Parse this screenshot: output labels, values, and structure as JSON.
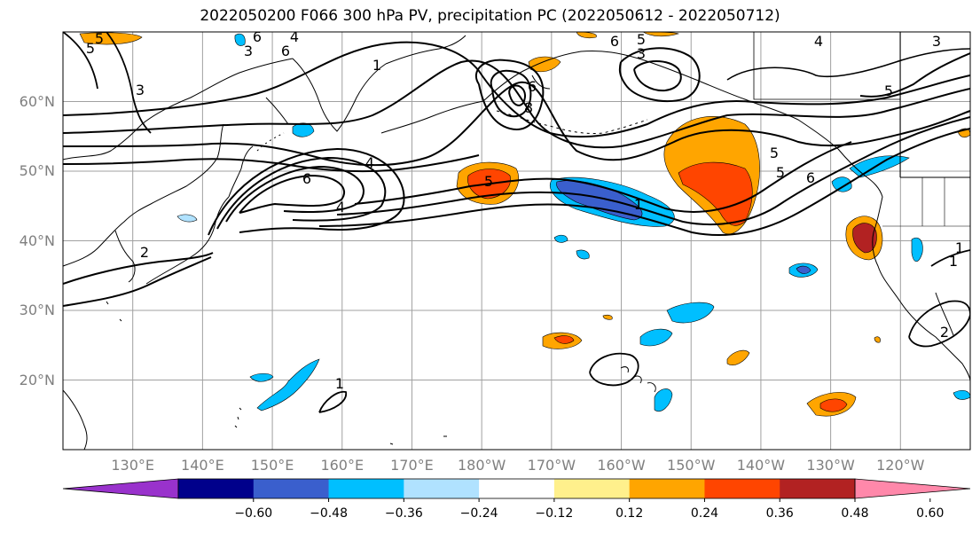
{
  "title": "2022050200 F066 300 hPa PV, precipitation PC (2022050612 - 2022050712)",
  "lat_labels": [
    {
      "text": "60°N",
      "lat": 60
    },
    {
      "text": "50°N",
      "lat": 50
    },
    {
      "text": "40°N",
      "lat": 40
    },
    {
      "text": "30°N",
      "lat": 30
    },
    {
      "text": "20°N",
      "lat": 20
    }
  ],
  "lon_labels": [
    {
      "text": "130°E",
      "lon": 130
    },
    {
      "text": "140°E",
      "lon": 140
    },
    {
      "text": "150°E",
      "lon": 150
    },
    {
      "text": "160°E",
      "lon": 160
    },
    {
      "text": "170°E",
      "lon": 170
    },
    {
      "text": "180°W",
      "lon": 180
    },
    {
      "text": "170°W",
      "lon": 190
    },
    {
      "text": "160°W",
      "lon": 200
    },
    {
      "text": "150°W",
      "lon": 210
    },
    {
      "text": "140°W",
      "lon": 220
    },
    {
      "text": "130°W",
      "lon": 230
    },
    {
      "text": "120°W",
      "lon": 240
    }
  ],
  "colorbar": {
    "colors": [
      "#9932cc",
      "#00008b",
      "#3a5fcd",
      "#00bfff",
      "#b0e2ff",
      "#ffffff",
      "#fff08c",
      "#ffa500",
      "#ff4500",
      "#b22222",
      "#ff88aa"
    ],
    "labels": [
      "−0.60",
      "−0.48",
      "−0.36",
      "−0.24",
      "−0.12",
      "0.12",
      "0.24",
      "0.36",
      "0.48",
      "0.60"
    ]
  },
  "contour_labels": [
    "5",
    "6",
    "4",
    "3",
    "6",
    "5",
    "3",
    "1",
    "8",
    "6",
    "5",
    "3",
    "4",
    "3",
    "4",
    "6",
    "5",
    "4",
    "5",
    "5",
    "6",
    "5",
    "2",
    "1",
    "1",
    "1",
    "1",
    "6",
    "2"
  ],
  "colors": {
    "land_outline": "#000000",
    "grid": "#a0a0a0",
    "contour": "#000000"
  }
}
